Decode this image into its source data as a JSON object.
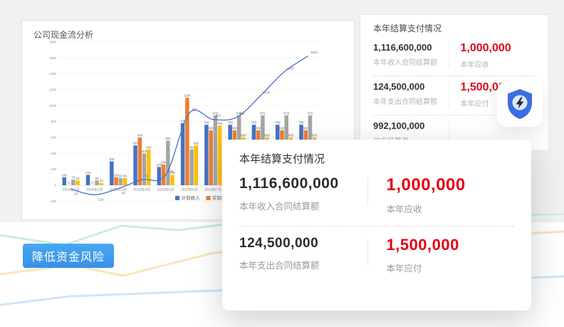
{
  "chart_card": {
    "title": "公司现金流分析"
  },
  "chart_data": {
    "type": "combo_bar_line",
    "title": "公司现金流分析",
    "categories": [
      "2019年1月",
      "2019年2月",
      "2019年3月",
      "2019年4月",
      "2019年5月",
      "2019年6月",
      "2019年7月",
      "2019年8月",
      "2019年9月",
      "2019年10月",
      "2019年11月"
    ],
    "series": [
      {
        "name": "计划收入",
        "type": "bar",
        "color": "#4472c4",
        "values": [
          100,
          130,
          300,
          500,
          230,
          780,
          760,
          760,
          760,
          760,
          760
        ]
      },
      {
        "name": "实际收入",
        "type": "bar",
        "color": "#ed7d31",
        "values": [
          0,
          0,
          100,
          600,
          260,
          1100,
          690,
          690,
          690,
          690,
          690
        ]
      },
      {
        "name": "计划支出",
        "type": "bar",
        "color": "#a5a5a5",
        "values": [
          70,
          60,
          90,
          400,
          560,
          450,
          879,
          879,
          879,
          879,
          879
        ]
      },
      {
        "name": "实际支出",
        "type": "bar",
        "color": "#ffc000",
        "values": [
          60,
          30,
          90,
          450,
          130,
          500,
          750,
          600,
          600,
          600,
          600
        ]
      }
    ],
    "line": {
      "color": "#4472c4",
      "values": [
        -50,
        -120,
        -40,
        70,
        130,
        907,
        827,
        855,
        1126,
        1425,
        1624
      ]
    },
    "ylim": [
      -200,
      1800
    ],
    "ytick_step": 200,
    "grid": true,
    "legend_position": "bottom"
  },
  "summary_panel": {
    "title": "本年结算支付情况",
    "rows": [
      {
        "left_value": "1,116,600,000",
        "left_label": "本年收入合同结算额",
        "right_value": "1,000,000",
        "right_label": "本年应收"
      },
      {
        "left_value": "124,500,000",
        "left_label": "本年支出合同结算额",
        "right_value": "1,500,000",
        "right_label": "本年应付"
      },
      {
        "left_value": "992,100,000",
        "left_label": "收支结算差",
        "right_value": "",
        "right_label": ""
      }
    ]
  },
  "popup": {
    "title": "本年结算支付情况",
    "rows": [
      {
        "left_value": "1,116,600,000",
        "left_label": "本年收入合同结算额",
        "right_value": "1,000,000",
        "right_label": "本年应收"
      },
      {
        "left_value": "124,500,000",
        "left_label": "本年支出合同结算额",
        "right_value": "1,500,000",
        "right_label": "本年应付"
      }
    ]
  },
  "badge": {
    "label": "降低资金风险"
  },
  "colors": {
    "accent_red": "#e60012",
    "panel_red": "#d80c18",
    "badge_blue": "#3f9ae9",
    "shield_blue": "#3d6be4",
    "bar_blue": "#4472c4",
    "bar_orange": "#ed7d31",
    "bar_gray": "#a5a5a5",
    "bar_yellow": "#ffc000",
    "bg_gray": "#f0f1f2"
  }
}
